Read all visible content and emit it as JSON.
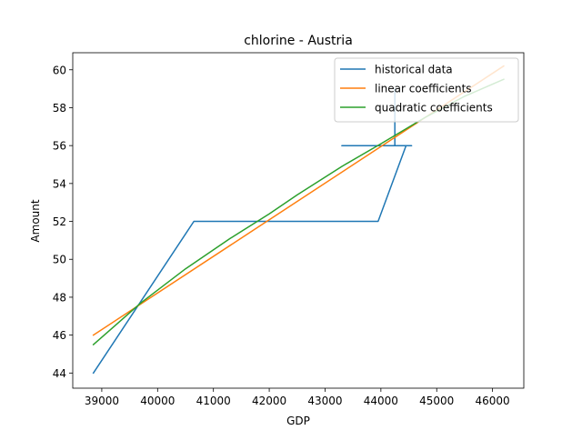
{
  "chart_data": {
    "type": "line",
    "title": "chlorine - Austria",
    "xlabel": "GDP",
    "ylabel": "Amount",
    "xlim": [
      38480,
      46560
    ],
    "ylim": [
      43.2,
      60.9
    ],
    "xticks": [
      39000,
      40000,
      41000,
      42000,
      43000,
      44000,
      45000,
      46000
    ],
    "yticks": [
      44,
      46,
      48,
      50,
      52,
      54,
      56,
      58,
      60
    ],
    "grid": false,
    "legend_position": "upper-right",
    "series": [
      {
        "name": "historical data",
        "color": "#1f77b4",
        "points": [
          [
            38850,
            44
          ],
          [
            40650,
            52
          ],
          [
            43950,
            52
          ],
          [
            44450,
            56
          ],
          [
            44550,
            56
          ],
          [
            43300,
            56
          ],
          [
            44250,
            56
          ],
          [
            44250,
            59
          ]
        ]
      },
      {
        "name": "linear coefficients",
        "color": "#ff7f0e",
        "points": [
          [
            38850,
            46.0
          ],
          [
            46200,
            60.2
          ]
        ]
      },
      {
        "name": "quadratic coefficients",
        "color": "#2ca02c",
        "points": [
          [
            38850,
            45.5
          ],
          [
            39700,
            47.7
          ],
          [
            40500,
            49.5
          ],
          [
            41300,
            51.1
          ],
          [
            42000,
            52.4
          ],
          [
            42500,
            53.4
          ],
          [
            43300,
            54.9
          ],
          [
            44000,
            56.1
          ],
          [
            44800,
            57.5
          ],
          [
            45500,
            58.6
          ],
          [
            46200,
            59.5
          ]
        ]
      }
    ]
  }
}
